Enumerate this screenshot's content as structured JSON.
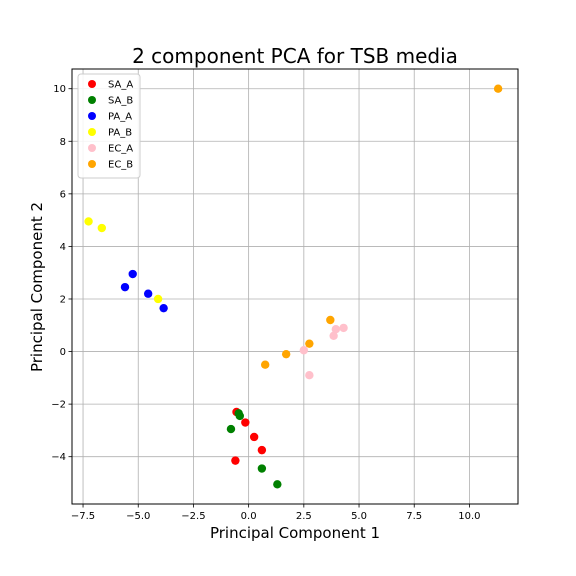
{
  "chart_data": {
    "type": "scatter",
    "title": "2 component PCA for TSB media",
    "xlabel": "Principal Component 1",
    "ylabel": "Principal Component 2",
    "xlim": [
      -8.0,
      12.2
    ],
    "ylim": [
      -5.8,
      10.75
    ],
    "xticks": [
      -7.5,
      -5.0,
      -2.5,
      0.0,
      2.5,
      5.0,
      7.5,
      10.0
    ],
    "xtick_labels": [
      "−7.5",
      "−5.0",
      "−2.5",
      "0.0",
      "2.5",
      "5.0",
      "7.5",
      "10.0"
    ],
    "yticks": [
      -4,
      -2,
      0,
      2,
      4,
      6,
      8,
      10
    ],
    "ytick_labels": [
      "−4",
      "−2",
      "0",
      "2",
      "4",
      "6",
      "8",
      "10"
    ],
    "grid": true,
    "legend_position": "top-left",
    "series": [
      {
        "name": "SA_A",
        "color": "#ff0000",
        "points": [
          [
            -0.55,
            -2.3
          ],
          [
            -0.15,
            -2.7
          ],
          [
            0.25,
            -3.25
          ],
          [
            0.6,
            -3.75
          ],
          [
            -0.6,
            -4.15
          ]
        ]
      },
      {
        "name": "SA_B",
        "color": "#008000",
        "points": [
          [
            -0.45,
            -2.35
          ],
          [
            -0.4,
            -2.45
          ],
          [
            -0.8,
            -2.95
          ],
          [
            0.6,
            -4.45
          ],
          [
            1.3,
            -5.05
          ]
        ]
      },
      {
        "name": "PA_A",
        "color": "#0000ff",
        "points": [
          [
            -5.25,
            2.95
          ],
          [
            -5.6,
            2.45
          ],
          [
            -4.55,
            2.2
          ],
          [
            -3.85,
            1.65
          ]
        ]
      },
      {
        "name": "PA_B",
        "color": "#ffff00",
        "points": [
          [
            -7.25,
            4.95
          ],
          [
            -6.65,
            4.7
          ],
          [
            -4.1,
            2.0
          ]
        ]
      },
      {
        "name": "EC_A",
        "color": "#ffc0cb",
        "points": [
          [
            4.3,
            0.9
          ],
          [
            3.95,
            0.85
          ],
          [
            3.85,
            0.6
          ],
          [
            2.5,
            0.05
          ],
          [
            2.75,
            -0.9
          ]
        ]
      },
      {
        "name": "EC_B",
        "color": "#ffa500",
        "points": [
          [
            11.3,
            10.0
          ],
          [
            3.7,
            1.2
          ],
          [
            2.75,
            0.3
          ],
          [
            1.7,
            -0.1
          ],
          [
            0.75,
            -0.5
          ]
        ]
      }
    ]
  }
}
